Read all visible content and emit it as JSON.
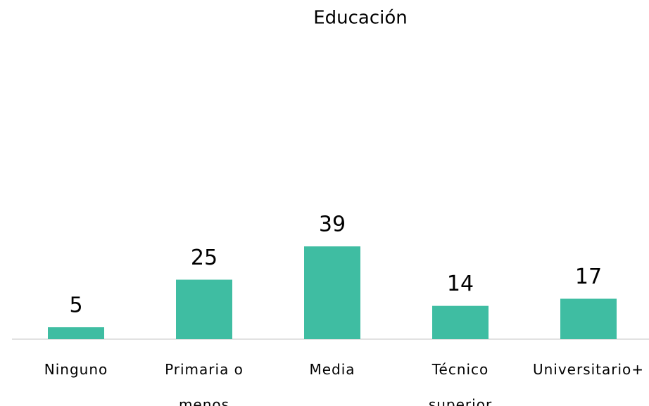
{
  "chart_data": {
    "type": "bar",
    "title": "Educación",
    "categories": [
      "Ninguno",
      "Primaria o menos",
      "Media",
      "Técnico superior",
      "Universitario+"
    ],
    "values": [
      5,
      25,
      39,
      14,
      17
    ],
    "color": "#3fbda2"
  }
}
